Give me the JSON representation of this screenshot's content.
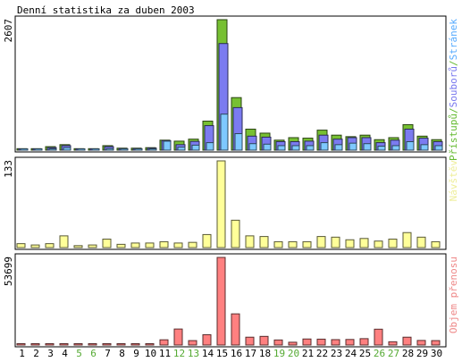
{
  "title": "Denní statistika za duben 2003",
  "chart_data": [
    {
      "type": "bar",
      "categories": [
        "1",
        "2",
        "3",
        "4",
        "5",
        "6",
        "7",
        "8",
        "9",
        "10",
        "11",
        "12",
        "13",
        "14",
        "15",
        "16",
        "17",
        "18",
        "19",
        "20",
        "21",
        "22",
        "23",
        "24",
        "25",
        "26",
        "27",
        "28",
        "29",
        "30"
      ],
      "weekend_days": [
        "5",
        "6",
        "12",
        "13",
        "19",
        "20",
        "26",
        "27"
      ],
      "ymax_label": "2607",
      "ylim": [
        0,
        2607
      ],
      "side_label_parts": [
        {
          "text": "Přístupů",
          "color": "#66bb33"
        },
        {
          "text": "/",
          "color": "#66bb33"
        },
        {
          "text": "Souborů",
          "color": "#7777ee"
        },
        {
          "text": "/",
          "color": "#66bb33"
        },
        {
          "text": "Stránek",
          "color": "#55aaff"
        }
      ],
      "series": [
        {
          "name": "Přístupů",
          "color": "#77c032",
          "values": [
            30,
            30,
            70,
            110,
            30,
            30,
            90,
            40,
            40,
            50,
            200,
            180,
            220,
            580,
            2607,
            1050,
            420,
            340,
            200,
            250,
            240,
            400,
            300,
            270,
            300,
            210,
            250,
            510,
            280,
            210
          ]
        },
        {
          "name": "Souborů",
          "color": "#7b7bf0",
          "values": [
            20,
            25,
            50,
            90,
            25,
            25,
            70,
            30,
            30,
            40,
            190,
            110,
            175,
            490,
            2130,
            850,
            280,
            260,
            170,
            170,
            180,
            300,
            220,
            250,
            250,
            150,
            200,
            420,
            240,
            170
          ]
        },
        {
          "name": "Stránek",
          "color": "#7ec8ff",
          "values": [
            10,
            10,
            20,
            50,
            10,
            10,
            30,
            15,
            15,
            20,
            180,
            60,
            100,
            150,
            720,
            330,
            130,
            120,
            90,
            90,
            90,
            150,
            110,
            140,
            130,
            80,
            90,
            170,
            110,
            90
          ]
        }
      ]
    },
    {
      "type": "bar",
      "categories": [
        "1",
        "2",
        "3",
        "4",
        "5",
        "6",
        "7",
        "8",
        "9",
        "10",
        "11",
        "12",
        "13",
        "14",
        "15",
        "16",
        "17",
        "18",
        "19",
        "20",
        "21",
        "22",
        "23",
        "24",
        "25",
        "26",
        "27",
        "28",
        "29",
        "30"
      ],
      "ymax_label": "133",
      "ylim": [
        0,
        133
      ],
      "side_label_parts": [
        {
          "text": "Návštěv",
          "color": "#eeee99"
        }
      ],
      "series": [
        {
          "name": "Návštěv",
          "color": "#ffff99",
          "values": [
            6,
            4,
            6,
            18,
            3,
            4,
            13,
            5,
            7,
            7,
            9,
            7,
            8,
            20,
            133,
            42,
            18,
            17,
            9,
            9,
            9,
            17,
            16,
            12,
            14,
            10,
            13,
            23,
            16,
            9
          ]
        }
      ]
    },
    {
      "type": "bar",
      "categories": [
        "1",
        "2",
        "3",
        "4",
        "5",
        "6",
        "7",
        "8",
        "9",
        "10",
        "11",
        "12",
        "13",
        "14",
        "15",
        "16",
        "17",
        "18",
        "19",
        "20",
        "21",
        "22",
        "23",
        "24",
        "25",
        "26",
        "27",
        "28",
        "29",
        "30"
      ],
      "ymax_label": "53699",
      "ylim": [
        0,
        53699
      ],
      "side_label_parts": [
        {
          "text": "Objem přenosu",
          "color": "#ee8888"
        }
      ],
      "series": [
        {
          "name": "Objem přenosu",
          "color": "#ff8080",
          "values": [
            500,
            500,
            500,
            600,
            500,
            500,
            600,
            500,
            500,
            500,
            3200,
            9800,
            2700,
            6300,
            53699,
            19100,
            4800,
            5300,
            3100,
            1700,
            3700,
            3600,
            3300,
            3400,
            3900,
            9700,
            2000,
            4800,
            2800,
            2700
          ]
        }
      ]
    }
  ]
}
